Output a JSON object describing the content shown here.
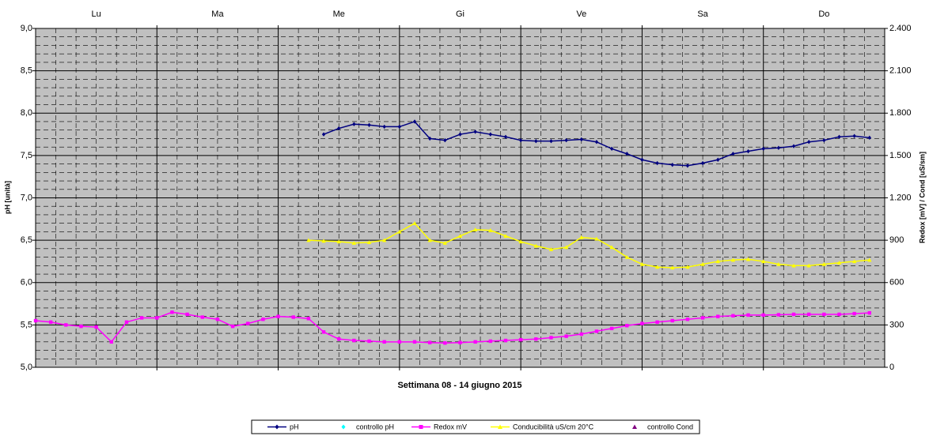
{
  "chart_data": {
    "type": "line",
    "x_title": "Settimana   08 -  14 giugno 2015",
    "y_title": "pH [unità]",
    "y2_title": "Redox [mV] / Cond [uS/sm]",
    "categories": [
      null,
      null,
      null,
      null,
      "Lu",
      null,
      null,
      null,
      null,
      null,
      null,
      null,
      "Ma",
      null,
      null,
      null,
      null,
      null,
      null,
      null,
      "Me",
      null,
      null,
      null,
      null,
      null,
      null,
      null,
      "Gi",
      null,
      null,
      null,
      null,
      null,
      null,
      null,
      "Ve",
      null,
      null,
      null,
      null,
      null,
      null,
      null,
      "Sa",
      null,
      null,
      null,
      null,
      null,
      null,
      null,
      "Do",
      null,
      null,
      null
    ],
    "ylim": [
      5,
      9
    ],
    "yticks": [
      {
        "value": 5,
        "label": "5,0"
      },
      {
        "value": 5.5,
        "label": "5,5"
      },
      {
        "value": 6,
        "label": "6,0"
      },
      {
        "value": 6.5,
        "label": "6,5"
      },
      {
        "value": 7,
        "label": "7,0"
      },
      {
        "value": 7.5,
        "label": "7,5"
      },
      {
        "value": 8,
        "label": "8,0"
      },
      {
        "value": 8.5,
        "label": "8,5"
      },
      {
        "value": 9,
        "label": "9,0"
      }
    ],
    "y2lim": [
      0,
      2400
    ],
    "y2ticks": [
      0,
      300,
      600,
      900,
      {
        "value": 1200,
        "label": "1.200"
      },
      {
        "value": 1500,
        "label": "1.500"
      },
      {
        "value": 1800,
        "label": "1.800"
      },
      {
        "value": 2100,
        "label": "2.100"
      },
      {
        "value": 2400,
        "label": "2.400"
      }
    ],
    "grid": true,
    "series": [
      {
        "name": "pH",
        "color": "#000080",
        "marker": "diamond",
        "line": true,
        "values": [
          null,
          null,
          null,
          null,
          null,
          null,
          null,
          null,
          null,
          null,
          null,
          null,
          null,
          null,
          null,
          null,
          null,
          null,
          null,
          7.75,
          7.82,
          7.87,
          7.86,
          7.84,
          7.84,
          7.9,
          7.7,
          7.68,
          7.75,
          7.78,
          7.75,
          7.72,
          7.68,
          7.67,
          7.67,
          7.68,
          7.69,
          7.66,
          7.58,
          7.52,
          7.45,
          7.41,
          7.39,
          7.38,
          7.41,
          7.45,
          7.52,
          7.55,
          7.58,
          7.59,
          7.61,
          7.66,
          7.68,
          7.72,
          7.73,
          7.71
        ]
      },
      {
        "name": "controllo pH",
        "color": "#00ffff",
        "marker": "diamond",
        "line": false,
        "values": [
          null,
          null,
          null,
          null,
          null,
          null,
          null,
          null,
          null,
          null,
          null,
          null,
          null,
          null,
          null,
          null,
          null,
          null,
          null,
          null,
          null,
          null,
          null,
          null,
          null,
          null,
          null,
          null,
          null,
          null,
          null,
          null,
          null,
          null,
          null,
          null,
          null,
          null,
          null,
          null,
          null,
          null,
          null,
          null,
          null,
          null,
          null,
          null,
          null,
          null,
          null,
          null,
          null,
          null,
          null,
          null
        ]
      },
      {
        "name": "Redox mV",
        "color": "#ff00ff",
        "marker": "square",
        "line": true,
        "axis": "y2",
        "values": [
          330,
          320,
          300,
          290,
          285,
          180,
          320,
          350,
          350,
          390,
          375,
          355,
          340,
          290,
          310,
          340,
          360,
          355,
          345,
          250,
          200,
          190,
          185,
          180,
          180,
          180,
          175,
          172,
          175,
          180,
          185,
          190,
          195,
          200,
          210,
          220,
          235,
          255,
          275,
          295,
          310,
          320,
          330,
          340,
          350,
          360,
          365,
          370,
          370,
          372,
          375,
          375,
          375,
          375,
          380,
          385
        ]
      },
      {
        "name": "Conducibilità uS/cm 20°C",
        "color": "#ffff00",
        "marker": "triangle",
        "line": true,
        "axis": "y2",
        "values": [
          null,
          null,
          null,
          null,
          null,
          null,
          null,
          null,
          null,
          null,
          null,
          null,
          null,
          null,
          null,
          null,
          null,
          null,
          900,
          895,
          890,
          880,
          885,
          900,
          960,
          1020,
          900,
          880,
          930,
          975,
          970,
          930,
          890,
          860,
          835,
          850,
          920,
          910,
          850,
          780,
          730,
          710,
          705,
          710,
          730,
          750,
          760,
          765,
          750,
          730,
          720,
          720,
          730,
          740,
          750,
          760
        ]
      },
      {
        "name": "controllo Cond",
        "color": "#800080",
        "marker": "triangle",
        "line": false,
        "axis": "y2",
        "values": [
          null,
          null,
          null,
          null,
          null,
          null,
          null,
          null,
          null,
          null,
          null,
          null,
          null,
          null,
          null,
          null,
          null,
          null,
          null,
          null,
          null,
          null,
          null,
          null,
          null,
          null,
          null,
          null,
          null,
          null,
          null,
          null,
          null,
          null,
          null,
          null,
          null,
          null,
          null,
          null,
          null,
          null,
          null,
          null,
          null,
          null,
          null,
          null,
          null,
          null,
          null,
          null,
          null,
          null,
          null,
          null
        ]
      }
    ]
  }
}
